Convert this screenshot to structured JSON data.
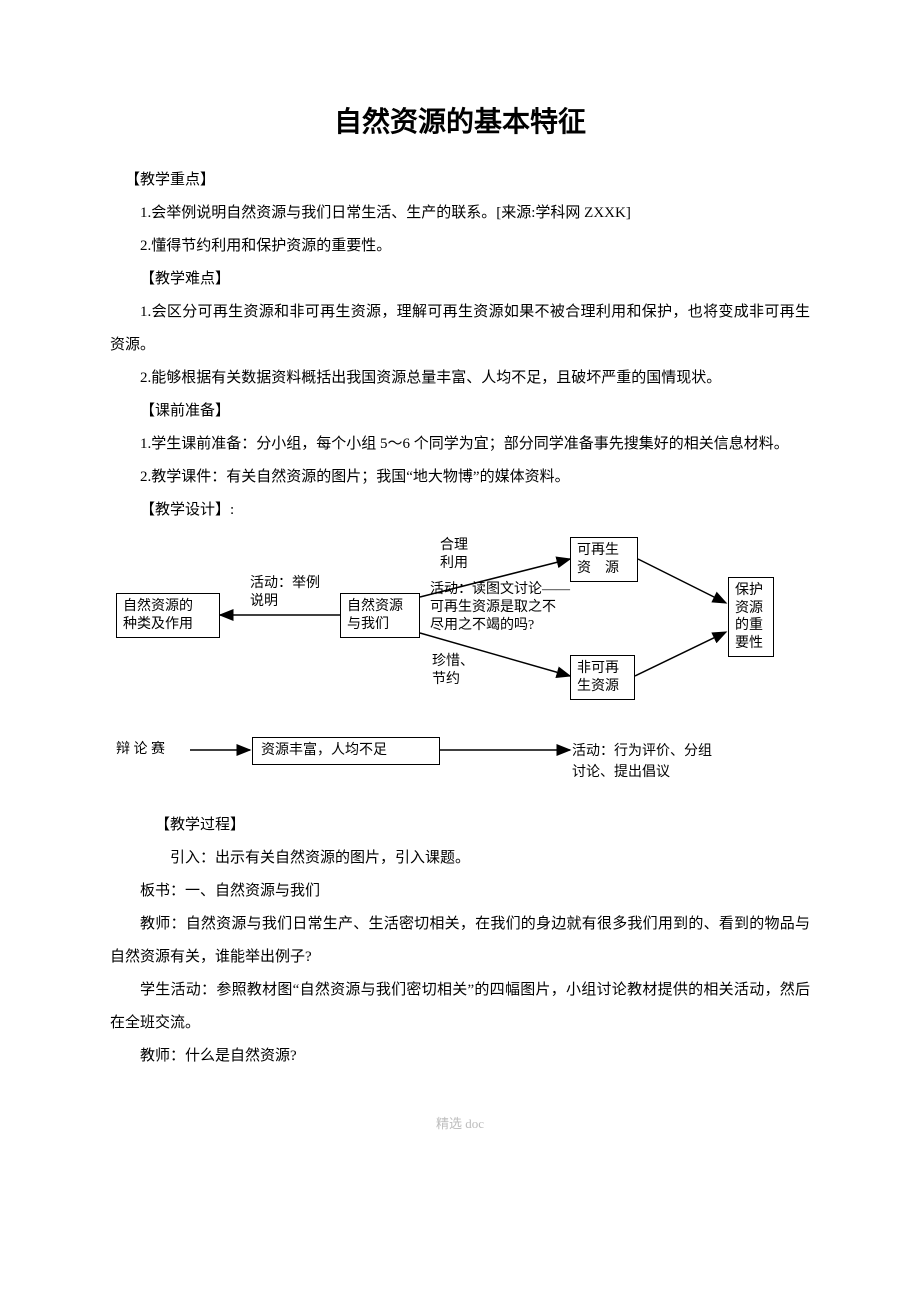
{
  "title": "自然资源的基本特征",
  "sections": {
    "key_points_label": "【教学重点】",
    "key1": "1.会举例说明自然资源与我们日常生活、生产的联系。[来源:学科网 ZXXK]",
    "key2": "2.懂得节约利用和保护资源的重要性。",
    "difficulties_label": "【教学难点】",
    "diff1": "1.会区分可再生资源和非可再生资源，理解可再生资源如果不被合理利用和保护，也将变成非可再生资源。",
    "diff2": "2.能够根据有关数据资料概括出我国资源总量丰富、人均不足，且破坏严重的国情现状。",
    "prep_label": "【课前准备】",
    "prep1": "1.学生课前准备：分小组，每个小组 5～6 个同学为宜；部分同学准备事先搜集好的相关信息材料。",
    "prep2": "2.教学课件：有关自然资源的图片；我国“地大物博”的媒体资料。",
    "design_label": "【教学设计】:",
    "process_label": "【教学过程】",
    "p1": "引入：出示有关自然资源的图片，引入课题。",
    "p2": "板书：一、自然资源与我们",
    "p3": "教师：自然资源与我们日常生产、生活密切相关，在我们的身边就有很多我们用到的、看到的物品与自然资源有关，谁能举出例子?",
    "p4": "学生活动：参照教材图“自然资源与我们密切相关”的四幅图片，小组讨论教材提供的相关活动，然后在全班交流。",
    "p5": "教师：什么是自然资源?"
  },
  "diagram": {
    "box_types": "自然资源的\n种类及作用",
    "box_center": "自然资源\n与我们",
    "box_renewable": "可再生\n资　源",
    "box_nonrenewable": "非可再\n生资源",
    "box_importance": "保护\n资源\n的重\n要性",
    "label_example": "活动：举例\n说明",
    "label_rational": "合理\n利用",
    "label_discuss": "活动：读图文讨论——\n可再生资源是取之不\n尽用之不竭的吗?",
    "label_cherish": "珍惜、\n节约",
    "debate": "辩 论 赛",
    "box_abundant": "资源丰富，人均不足",
    "label_activity2": "活动：行为评价、分组\n讨论、提出倡议"
  },
  "footer": "精选 doc",
  "colors": {
    "text": "#000000",
    "bg": "#ffffff",
    "footer": "#bdbdbd",
    "border": "#000000"
  }
}
